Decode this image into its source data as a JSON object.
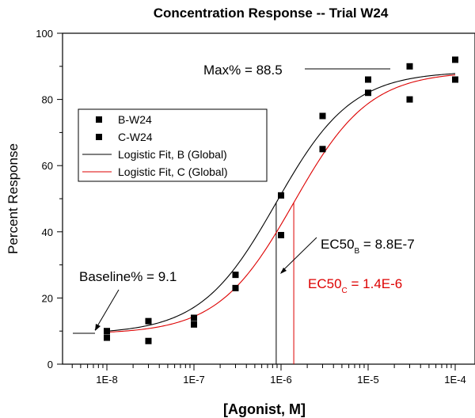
{
  "chart_data": {
    "type": "scatter",
    "title": "Concentration Response -- Trial W24",
    "xlabel": "[Agonist, M]",
    "ylabel": "Percent Response",
    "xscale": "log",
    "xlim": [
      3e-09,
      0.00012
    ],
    "ylim": [
      0,
      100
    ],
    "x_tick_labels": [
      "1E-8",
      "1E-7",
      "1E-6",
      "1E-5",
      "1E-4"
    ],
    "x_ticks": [
      1e-08,
      1e-07,
      1e-06,
      1e-05,
      0.0001
    ],
    "y_ticks": [
      0,
      20,
      40,
      60,
      80,
      100
    ],
    "grid": false,
    "legend_position": "upper-left",
    "series": [
      {
        "name": "B-W24",
        "kind": "points",
        "color": "#000000",
        "points": [
          {
            "x": 1e-08,
            "y": 10
          },
          {
            "x": 3e-08,
            "y": 13
          },
          {
            "x": 1e-07,
            "y": 14
          },
          {
            "x": 3e-07,
            "y": 27
          },
          {
            "x": 1e-06,
            "y": 51
          },
          {
            "x": 3e-06,
            "y": 75
          },
          {
            "x": 1e-05,
            "y": 86
          },
          {
            "x": 3e-05,
            "y": 90
          },
          {
            "x": 0.0001,
            "y": 92
          }
        ]
      },
      {
        "name": "C-W24",
        "kind": "points",
        "color": "#000000",
        "points": [
          {
            "x": 1e-08,
            "y": 8
          },
          {
            "x": 3e-08,
            "y": 7
          },
          {
            "x": 1e-07,
            "y": 12
          },
          {
            "x": 3e-07,
            "y": 23
          },
          {
            "x": 1e-06,
            "y": 39
          },
          {
            "x": 3e-06,
            "y": 65
          },
          {
            "x": 1e-05,
            "y": 82
          },
          {
            "x": 3e-05,
            "y": 80
          },
          {
            "x": 0.0001,
            "y": 86
          }
        ]
      },
      {
        "name": "Logistic Fit, B (Global)",
        "kind": "logistic",
        "color": "#000000",
        "bottom": 9.1,
        "top": 88.5,
        "ec50": 8.8e-07,
        "hill": 1.0
      },
      {
        "name": "Logistic Fit, C (Global)",
        "kind": "logistic",
        "color": "#dd0000",
        "bottom": 9.1,
        "top": 88.5,
        "ec50": 1.4e-06,
        "hill": 1.0
      }
    ],
    "annotations": {
      "max_label": "Max% = 88.5",
      "baseline_label": "Baseline% = 9.1",
      "ec50_b": {
        "main": "EC50",
        "sub": "B",
        "value": " = 8.8E-7",
        "x": 8.8e-07,
        "color": "#000000"
      },
      "ec50_c": {
        "main": "EC50",
        "sub": "C",
        "value": " = 1.4E-6",
        "x": 1.4e-06,
        "color": "#dd0000"
      }
    }
  }
}
